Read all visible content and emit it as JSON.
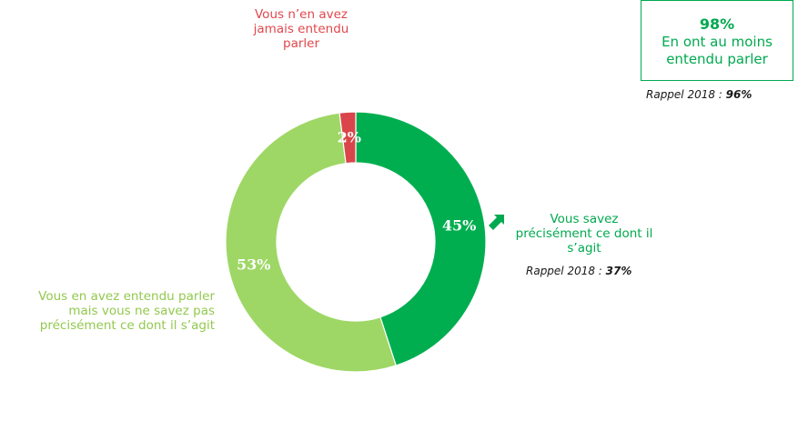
{
  "chart_data": {
    "type": "pie",
    "donut": true,
    "slices": [
      {
        "name": "Vous savez\nprécisément ce dont il\ns'agit",
        "value": 45,
        "label": "45%",
        "color": "#00ae4f"
      },
      {
        "name": "Vous en avez entendu parler\nmais vous ne savez pas\nprécisément ce dont il s'agit",
        "value": 53,
        "label": "53%",
        "color": "#9ed765"
      },
      {
        "name": "Vous n'en avez\njamais entendu\nparler",
        "value": 2,
        "label": "2%",
        "color": "#d9454a"
      }
    ]
  },
  "labels": {
    "never": "Vous n’en avez\njamais entendu\nparler",
    "precise": "Vous savez\nprécisément ce dont il\ns’agit",
    "heard": "Vous en avez entendu parler\nmais vous ne savez pas\nprécisément ce dont il s’agit"
  },
  "recall_precise": {
    "prefix": "Rappel 2018  : ",
    "value": "37%"
  },
  "recall_total": {
    "prefix": "Rappel 2018  : ",
    "value": "96%"
  },
  "total_box": {
    "pct": "98%",
    "text": "En ont au moins\nentendu parler"
  },
  "icons": {
    "arrow": "arrow-up-right-icon"
  }
}
